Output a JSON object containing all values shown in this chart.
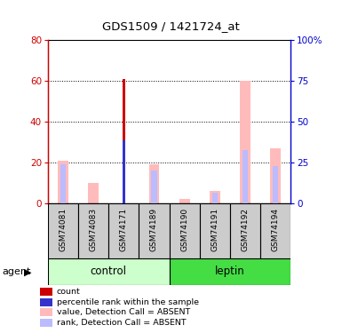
{
  "title": "GDS1509 / 1421724_at",
  "samples": [
    "GSM74081",
    "GSM74083",
    "GSM74171",
    "GSM74189",
    "GSM74190",
    "GSM74191",
    "GSM74192",
    "GSM74194"
  ],
  "count_values": [
    0,
    0,
    61,
    0,
    0,
    0,
    0,
    0
  ],
  "rank_values": [
    0,
    0,
    31,
    0,
    0,
    0,
    0,
    0
  ],
  "absent_value": [
    21,
    10,
    0,
    19,
    2,
    6,
    60,
    27
  ],
  "absent_rank": [
    19,
    0,
    0,
    16,
    0,
    5,
    26,
    18
  ],
  "ylim_left": [
    0,
    80
  ],
  "ylim_right": [
    0,
    100
  ],
  "yticks_left": [
    0,
    20,
    40,
    60,
    80
  ],
  "yticks_right": [
    0,
    25,
    50,
    75,
    100
  ],
  "color_count": "#cc0000",
  "color_rank": "#3333cc",
  "color_absent_value": "#ffbbbb",
  "color_absent_rank": "#bbbbff",
  "color_left_axis": "#cc0000",
  "color_right_axis": "#0000cc",
  "color_control_bg": "#ccffcc",
  "color_leptin_bg": "#44dd44",
  "color_label_bg": "#cccccc",
  "agent_label": "agent",
  "legend_items": [
    {
      "color": "#cc0000",
      "label": "count"
    },
    {
      "color": "#3333cc",
      "label": "percentile rank within the sample"
    },
    {
      "color": "#ffbbbb",
      "label": "value, Detection Call = ABSENT"
    },
    {
      "color": "#bbbbff",
      "label": "rank, Detection Call = ABSENT"
    }
  ]
}
